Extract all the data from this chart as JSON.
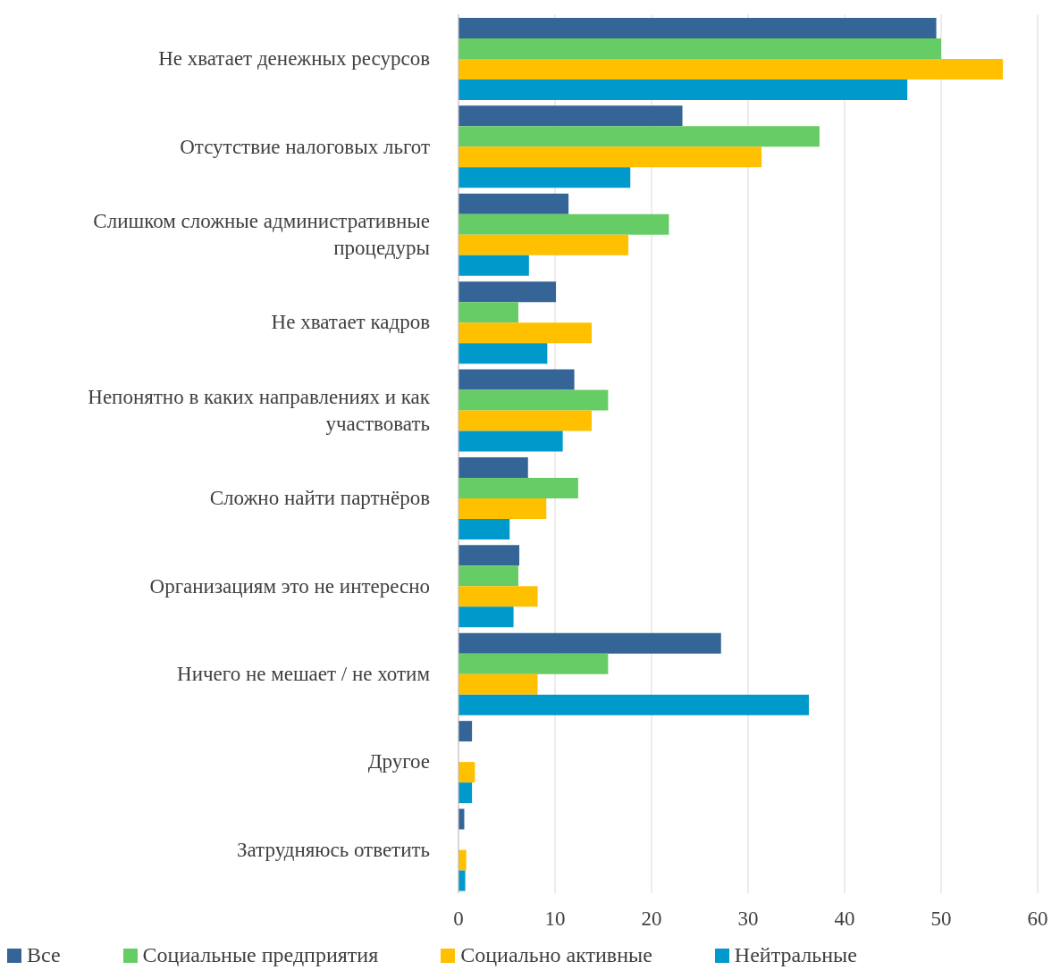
{
  "chart_data": {
    "type": "bar",
    "orientation": "horizontal",
    "categories": [
      "Не хватает денежных ресурсов",
      "Отсутствие налоговых льгот",
      "Слишком сложные административные процедуры",
      "Не хватает кадров",
      "Непонятно в каких направлениях и как участвовать",
      "Сложно найти партнёров",
      "Организациям это не интересно",
      "Ничего не мешает / не хотим",
      "Другое",
      "Затрудняюсь ответить"
    ],
    "series": [
      {
        "name": "Все",
        "color": "#356597",
        "values": [
          49.5,
          23.2,
          11.4,
          10.1,
          12.0,
          7.2,
          6.3,
          27.2,
          1.4,
          0.6
        ]
      },
      {
        "name": "Социальные предприятия",
        "color": "#66cc66",
        "values": [
          50.0,
          37.4,
          21.8,
          6.2,
          15.5,
          12.4,
          6.2,
          15.5,
          null,
          null
        ]
      },
      {
        "name": "Социально активные",
        "color": "#ffc000",
        "values": [
          56.4,
          31.4,
          17.6,
          13.8,
          13.8,
          9.1,
          8.2,
          8.2,
          1.7,
          0.8
        ]
      },
      {
        "name": "Нейтральные",
        "color": "#0099cc",
        "values": [
          46.5,
          17.8,
          7.3,
          9.2,
          10.8,
          5.3,
          5.7,
          36.3,
          1.4,
          0.7
        ]
      }
    ],
    "xlim": [
      0,
      60
    ],
    "xticks": [
      0,
      10,
      20,
      30,
      40,
      50,
      60
    ],
    "grid": "x",
    "legend": "bottom"
  }
}
